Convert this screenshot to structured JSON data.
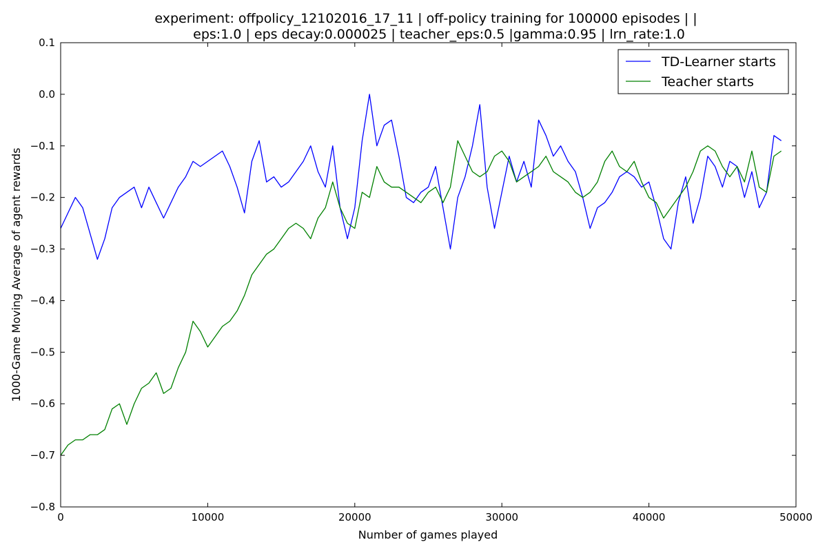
{
  "chart_data": {
    "type": "line",
    "title_lines": [
      "experiment: offpolicy_12102016_17_11 | off-policy training for 100000 episodes | |",
      "eps:1.0 | eps decay:0.000025 | teacher_eps:0.5 |gamma:0.95 | lrn_rate:1.0"
    ],
    "xlabel": "Number of games played",
    "ylabel": "1000-Game Moving Average of agent rewards",
    "xlim": [
      0,
      50000
    ],
    "ylim": [
      -0.8,
      0.1
    ],
    "x_ticks": [
      0,
      10000,
      20000,
      30000,
      40000,
      50000
    ],
    "x_tick_labels": [
      "0",
      "10000",
      "20000",
      "30000",
      "40000",
      "50000"
    ],
    "y_ticks": [
      0.1,
      0.0,
      -0.1,
      -0.2,
      -0.3,
      -0.4,
      -0.5,
      -0.6,
      -0.7,
      -0.8
    ],
    "y_tick_labels": [
      "0.1",
      "0.0",
      "−0.1",
      "−0.2",
      "−0.3",
      "−0.4",
      "−0.5",
      "−0.6",
      "−0.7",
      "−0.8"
    ],
    "grid": false,
    "legend_position": "top-right",
    "series": [
      {
        "name": "TD-Learner starts",
        "color": "#0000ff",
        "x": [
          0,
          500,
          1000,
          1500,
          2000,
          2500,
          3000,
          3500,
          4000,
          4500,
          5000,
          5500,
          6000,
          6500,
          7000,
          7500,
          8000,
          8500,
          9000,
          9500,
          10000,
          10500,
          11000,
          11500,
          12000,
          12500,
          13000,
          13500,
          14000,
          14500,
          15000,
          15500,
          16000,
          16500,
          17000,
          17500,
          18000,
          18500,
          19000,
          19500,
          20000,
          20500,
          21000,
          21500,
          22000,
          22500,
          23000,
          23500,
          24000,
          24500,
          25000,
          25500,
          26000,
          26500,
          27000,
          27500,
          28000,
          28500,
          29000,
          29500,
          30000,
          30500,
          31000,
          31500,
          32000,
          32500,
          33000,
          33500,
          34000,
          34500,
          35000,
          35500,
          36000,
          36500,
          37000,
          37500,
          38000,
          38500,
          39000,
          39500,
          40000,
          40500,
          41000,
          41500,
          42000,
          42500,
          43000,
          43500,
          44000,
          44500,
          45000,
          45500,
          46000,
          46500,
          47000,
          47500,
          48000,
          48500,
          49000
        ],
        "y": [
          -0.26,
          -0.23,
          -0.2,
          -0.22,
          -0.27,
          -0.32,
          -0.28,
          -0.22,
          -0.2,
          -0.19,
          -0.18,
          -0.22,
          -0.18,
          -0.21,
          -0.24,
          -0.21,
          -0.18,
          -0.16,
          -0.13,
          -0.14,
          -0.13,
          -0.12,
          -0.11,
          -0.14,
          -0.18,
          -0.23,
          -0.13,
          -0.09,
          -0.17,
          -0.16,
          -0.18,
          -0.17,
          -0.15,
          -0.13,
          -0.1,
          -0.15,
          -0.18,
          -0.1,
          -0.22,
          -0.28,
          -0.22,
          -0.09,
          0.0,
          -0.1,
          -0.06,
          -0.05,
          -0.12,
          -0.2,
          -0.21,
          -0.19,
          -0.18,
          -0.14,
          -0.22,
          -0.3,
          -0.2,
          -0.16,
          -0.1,
          -0.02,
          -0.18,
          -0.26,
          -0.19,
          -0.12,
          -0.17,
          -0.13,
          -0.18,
          -0.05,
          -0.08,
          -0.12,
          -0.1,
          -0.13,
          -0.15,
          -0.2,
          -0.26,
          -0.22,
          -0.21,
          -0.19,
          -0.16,
          -0.15,
          -0.16,
          -0.18,
          -0.17,
          -0.22,
          -0.28,
          -0.3,
          -0.21,
          -0.16,
          -0.25,
          -0.2,
          -0.12,
          -0.14,
          -0.18,
          -0.13,
          -0.14,
          -0.2,
          -0.15,
          -0.22,
          -0.19,
          -0.08,
          -0.09
        ]
      },
      {
        "name": "Teacher starts",
        "color": "#008000",
        "x": [
          0,
          500,
          1000,
          1500,
          2000,
          2500,
          3000,
          3500,
          4000,
          4500,
          5000,
          5500,
          6000,
          6500,
          7000,
          7500,
          8000,
          8500,
          9000,
          9500,
          10000,
          10500,
          11000,
          11500,
          12000,
          12500,
          13000,
          13500,
          14000,
          14500,
          15000,
          15500,
          16000,
          16500,
          17000,
          17500,
          18000,
          18500,
          19000,
          19500,
          20000,
          20500,
          21000,
          21500,
          22000,
          22500,
          23000,
          23500,
          24000,
          24500,
          25000,
          25500,
          26000,
          26500,
          27000,
          27500,
          28000,
          28500,
          29000,
          29500,
          30000,
          30500,
          31000,
          31500,
          32000,
          32500,
          33000,
          33500,
          34000,
          34500,
          35000,
          35500,
          36000,
          36500,
          37000,
          37500,
          38000,
          38500,
          39000,
          39500,
          40000,
          40500,
          41000,
          41500,
          42000,
          42500,
          43000,
          43500,
          44000,
          44500,
          45000,
          45500,
          46000,
          46500,
          47000,
          47500,
          48000,
          48500,
          49000
        ],
        "y": [
          -0.7,
          -0.68,
          -0.67,
          -0.67,
          -0.66,
          -0.66,
          -0.65,
          -0.61,
          -0.6,
          -0.64,
          -0.6,
          -0.57,
          -0.56,
          -0.54,
          -0.58,
          -0.57,
          -0.53,
          -0.5,
          -0.44,
          -0.46,
          -0.49,
          -0.47,
          -0.45,
          -0.44,
          -0.42,
          -0.39,
          -0.35,
          -0.33,
          -0.31,
          -0.3,
          -0.28,
          -0.26,
          -0.25,
          -0.26,
          -0.28,
          -0.24,
          -0.22,
          -0.17,
          -0.22,
          -0.25,
          -0.26,
          -0.19,
          -0.2,
          -0.14,
          -0.17,
          -0.18,
          -0.18,
          -0.19,
          -0.2,
          -0.21,
          -0.19,
          -0.18,
          -0.21,
          -0.18,
          -0.09,
          -0.12,
          -0.15,
          -0.16,
          -0.15,
          -0.12,
          -0.11,
          -0.13,
          -0.17,
          -0.16,
          -0.15,
          -0.14,
          -0.12,
          -0.15,
          -0.16,
          -0.17,
          -0.19,
          -0.2,
          -0.19,
          -0.17,
          -0.13,
          -0.11,
          -0.14,
          -0.15,
          -0.13,
          -0.17,
          -0.2,
          -0.21,
          -0.24,
          -0.22,
          -0.2,
          -0.18,
          -0.15,
          -0.11,
          -0.1,
          -0.11,
          -0.14,
          -0.16,
          -0.14,
          -0.17,
          -0.11,
          -0.18,
          -0.19,
          -0.12,
          -0.11
        ]
      }
    ]
  }
}
